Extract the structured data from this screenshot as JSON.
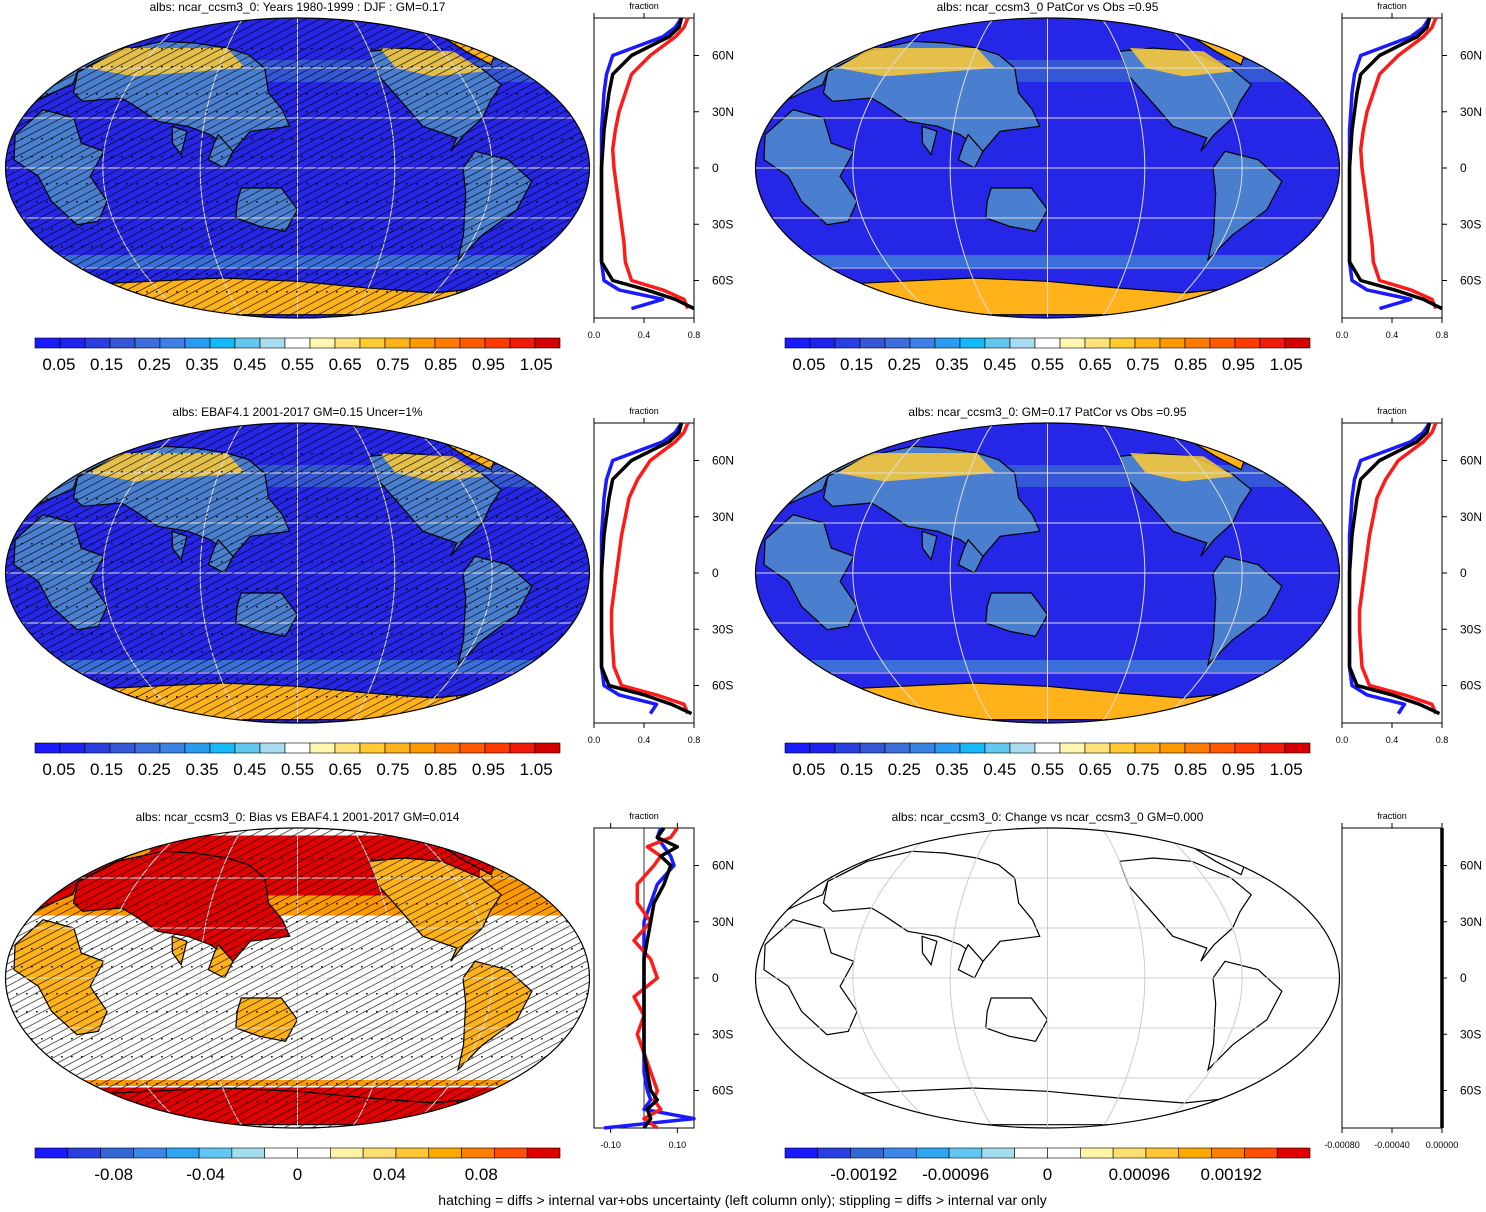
{
  "footnote": "hatching = diffs > internal var+obs uncertainty (left column only); stippling = diffs > internal var only",
  "colors": {
    "abs_palette": [
      "#1a1aff",
      "#1f22ee",
      "#2a3fe0",
      "#3457d6",
      "#3a6ed8",
      "#3b82e4",
      "#2a9cf0",
      "#16b8f6",
      "#62c8ef",
      "#a9dcef",
      "#ffffff",
      "#fff6b0",
      "#ffe27a",
      "#ffcb33",
      "#ffb21a",
      "#ff9900",
      "#ff7a00",
      "#ff5a00",
      "#ff3a00",
      "#f01a0a",
      "#d40000"
    ],
    "diff_palette": [
      "#1a1aff",
      "#2a3fe0",
      "#3466d8",
      "#3b86e6",
      "#2aa6f2",
      "#5ec7f2",
      "#a6dcf0",
      "#ffffff",
      "#ffffff",
      "#fff4a8",
      "#ffdf6e",
      "#ffc633",
      "#ffa800",
      "#ff7e00",
      "#ff4e00",
      "#e00000"
    ],
    "ocean": "#2626e6",
    "profile_model": "#000000",
    "profile_obs": "#ff1a1a",
    "profile_other": "#1a1aff"
  },
  "profile_axis": {
    "title": "fraction",
    "lat_labels": [
      "60N",
      "30N",
      "0",
      "30S",
      "60S"
    ]
  },
  "panels": [
    {
      "title": "albs: ncar_ccsm3_0: Years 1980-1999 : DJF : GM=0.17",
      "map_style": "abs",
      "hatching": true,
      "colorbar_labels": [
        "0.05",
        "0.15",
        "0.25",
        "0.35",
        "0.45",
        "0.55",
        "0.65",
        "0.75",
        "0.85",
        "0.95",
        "1.05"
      ],
      "profile_xticks": [
        "0.0",
        "0.4",
        "0.8"
      ]
    },
    {
      "title": "albs: ncar_ccsm3_0 PatCor vs Obs =0.95",
      "map_style": "abs",
      "hatching": false,
      "colorbar_labels": [
        "0.05",
        "0.15",
        "0.25",
        "0.35",
        "0.45",
        "0.55",
        "0.65",
        "0.75",
        "0.85",
        "0.95",
        "1.05"
      ],
      "profile_xticks": [
        "0.0",
        "0.4",
        "0.8"
      ]
    },
    {
      "title": "albs: EBAF4.1 2001-2017 GM=0.15 Uncer=1%",
      "map_style": "abs",
      "hatching": true,
      "colorbar_labels": [
        "0.05",
        "0.15",
        "0.25",
        "0.35",
        "0.45",
        "0.55",
        "0.65",
        "0.75",
        "0.85",
        "0.95",
        "1.05"
      ],
      "profile_xticks": [
        "0.0",
        "0.4",
        "0.8"
      ]
    },
    {
      "title": "albs: ncar_ccsm3_0: GM=0.17 PatCor vs Obs =0.95",
      "map_style": "abs",
      "hatching": false,
      "colorbar_labels": [
        "0.05",
        "0.15",
        "0.25",
        "0.35",
        "0.45",
        "0.55",
        "0.65",
        "0.75",
        "0.85",
        "0.95",
        "1.05"
      ],
      "profile_xticks": [
        "0.0",
        "0.4",
        "0.8"
      ]
    },
    {
      "title": "albs: ncar_ccsm3_0: Bias vs EBAF4.1 2001-2017 GM=0.014",
      "map_style": "bias",
      "hatching": true,
      "colorbar_labels": [
        "-0.08",
        "-0.04",
        "0",
        "0.04",
        "0.08"
      ],
      "profile_xticks": [
        "-0.10",
        "0.10"
      ]
    },
    {
      "title": "albs: ncar_ccsm3_0: Change vs ncar_ccsm3_0 GM=0.000",
      "map_style": "blank",
      "hatching": false,
      "colorbar_labels": [
        "-0.00192",
        "-0.00096",
        "0",
        "0.00096",
        "0.00192"
      ],
      "profile_xticks": [
        "-0.00080",
        "-0.00040",
        "0.00000"
      ]
    }
  ],
  "chart_data": [
    {
      "type": "line",
      "title": "albs: ncar_ccsm3_0: Years 1980-1999 : DJF : GM=0.17",
      "xlabel": "fraction",
      "ylabel": "",
      "xlim": [
        0,
        0.8
      ],
      "ylim": [
        -80,
        80
      ],
      "series": [
        {
          "color": "#000000",
          "y": [
            -75,
            -70,
            -65,
            -60,
            -50,
            -40,
            -30,
            -20,
            -10,
            0,
            10,
            20,
            30,
            40,
            50,
            60,
            65,
            70,
            75,
            80
          ],
          "x": [
            0.8,
            0.65,
            0.42,
            0.15,
            0.06,
            0.06,
            0.06,
            0.06,
            0.06,
            0.06,
            0.07,
            0.08,
            0.1,
            0.12,
            0.15,
            0.3,
            0.45,
            0.6,
            0.68,
            0.7
          ]
        },
        {
          "color": "#ff1a1a",
          "y": [
            -75,
            -70,
            -65,
            -60,
            -50,
            -40,
            -30,
            -20,
            -10,
            0,
            10,
            20,
            30,
            40,
            50,
            60,
            65,
            70,
            75,
            80
          ],
          "x": [
            0.75,
            0.72,
            0.55,
            0.3,
            0.25,
            0.24,
            0.22,
            0.2,
            0.18,
            0.16,
            0.15,
            0.17,
            0.2,
            0.25,
            0.3,
            0.45,
            0.55,
            0.65,
            0.72,
            0.75
          ]
        },
        {
          "color": "#1a1aff",
          "y": [
            -75,
            -70,
            -65,
            -60,
            -50,
            -40,
            -30,
            -20,
            -10,
            0,
            10,
            20,
            30,
            40,
            50,
            60,
            65,
            70,
            75,
            80
          ],
          "x": [
            0.3,
            0.55,
            0.2,
            0.08,
            0.06,
            0.06,
            0.06,
            0.06,
            0.06,
            0.06,
            0.06,
            0.06,
            0.07,
            0.08,
            0.1,
            0.15,
            0.35,
            0.55,
            0.65,
            0.7
          ]
        }
      ]
    },
    {
      "type": "line",
      "title": "albs: ncar_ccsm3_0 PatCor vs Obs =0.95",
      "xlabel": "fraction",
      "ylabel": "",
      "xlim": [
        0,
        0.8
      ],
      "ylim": [
        -80,
        80
      ],
      "series": [
        {
          "color": "#000000",
          "y": [
            -75,
            -70,
            -65,
            -60,
            -50,
            -40,
            -30,
            -20,
            -10,
            0,
            10,
            20,
            30,
            40,
            50,
            60,
            65,
            70,
            75,
            80
          ],
          "x": [
            0.8,
            0.65,
            0.42,
            0.15,
            0.06,
            0.06,
            0.06,
            0.06,
            0.06,
            0.06,
            0.07,
            0.08,
            0.1,
            0.12,
            0.15,
            0.3,
            0.45,
            0.6,
            0.68,
            0.7
          ]
        },
        {
          "color": "#ff1a1a",
          "y": [
            -75,
            -70,
            -65,
            -60,
            -50,
            -40,
            -30,
            -20,
            -10,
            0,
            10,
            20,
            30,
            40,
            50,
            60,
            65,
            70,
            75,
            80
          ],
          "x": [
            0.75,
            0.72,
            0.55,
            0.3,
            0.25,
            0.24,
            0.22,
            0.2,
            0.18,
            0.16,
            0.15,
            0.17,
            0.2,
            0.25,
            0.3,
            0.45,
            0.55,
            0.65,
            0.72,
            0.75
          ]
        },
        {
          "color": "#1a1aff",
          "y": [
            -75,
            -70,
            -65,
            -60,
            -50,
            -40,
            -30,
            -20,
            -10,
            0,
            10,
            20,
            30,
            40,
            50,
            60,
            65,
            70,
            75,
            80
          ],
          "x": [
            0.3,
            0.55,
            0.2,
            0.08,
            0.06,
            0.06,
            0.06,
            0.06,
            0.06,
            0.06,
            0.06,
            0.06,
            0.07,
            0.08,
            0.1,
            0.15,
            0.35,
            0.55,
            0.65,
            0.7
          ]
        }
      ]
    },
    {
      "type": "line",
      "title": "albs: EBAF4.1 2001-2017 GM=0.15 Uncer=1%",
      "xlabel": "fraction",
      "ylabel": "",
      "xlim": [
        0,
        0.8
      ],
      "ylim": [
        -80,
        80
      ],
      "series": [
        {
          "color": "#000000",
          "y": [
            -75,
            -70,
            -65,
            -60,
            -50,
            -40,
            -30,
            -20,
            -10,
            0,
            10,
            20,
            30,
            40,
            50,
            60,
            65,
            70,
            75,
            80
          ],
          "x": [
            0.78,
            0.62,
            0.4,
            0.12,
            0.06,
            0.06,
            0.06,
            0.06,
            0.06,
            0.06,
            0.07,
            0.08,
            0.1,
            0.12,
            0.15,
            0.3,
            0.45,
            0.6,
            0.68,
            0.7
          ]
        },
        {
          "color": "#ff1a1a",
          "y": [
            -75,
            -70,
            -65,
            -60,
            -50,
            -40,
            -30,
            -20,
            -10,
            0,
            10,
            20,
            30,
            40,
            50,
            60,
            65,
            70,
            75,
            80
          ],
          "x": [
            0.75,
            0.72,
            0.5,
            0.22,
            0.16,
            0.15,
            0.14,
            0.14,
            0.16,
            0.18,
            0.2,
            0.22,
            0.25,
            0.28,
            0.35,
            0.45,
            0.55,
            0.65,
            0.72,
            0.75
          ]
        },
        {
          "color": "#1a1aff",
          "y": [
            -75,
            -70,
            -65,
            -60,
            -50,
            -40,
            -30,
            -20,
            -10,
            0,
            10,
            20,
            30,
            40,
            50,
            60,
            65,
            70,
            75,
            80
          ],
          "x": [
            0.45,
            0.5,
            0.2,
            0.08,
            0.06,
            0.06,
            0.06,
            0.06,
            0.06,
            0.06,
            0.06,
            0.06,
            0.07,
            0.08,
            0.1,
            0.15,
            0.35,
            0.55,
            0.65,
            0.7
          ]
        }
      ]
    },
    {
      "type": "line",
      "title": "albs: ncar_ccsm3_0: GM=0.17 PatCor vs Obs =0.95",
      "xlabel": "fraction",
      "ylabel": "",
      "xlim": [
        0,
        0.8
      ],
      "ylim": [
        -80,
        80
      ],
      "series": [
        {
          "color": "#000000",
          "y": [
            -75,
            -70,
            -65,
            -60,
            -50,
            -40,
            -30,
            -20,
            -10,
            0,
            10,
            20,
            30,
            40,
            50,
            60,
            65,
            70,
            75,
            80
          ],
          "x": [
            0.78,
            0.62,
            0.4,
            0.12,
            0.06,
            0.06,
            0.06,
            0.06,
            0.06,
            0.06,
            0.07,
            0.08,
            0.1,
            0.12,
            0.15,
            0.3,
            0.45,
            0.6,
            0.68,
            0.7
          ]
        },
        {
          "color": "#ff1a1a",
          "y": [
            -75,
            -70,
            -65,
            -60,
            -50,
            -40,
            -30,
            -20,
            -10,
            0,
            10,
            20,
            30,
            40,
            50,
            60,
            65,
            70,
            75,
            80
          ],
          "x": [
            0.75,
            0.72,
            0.5,
            0.22,
            0.16,
            0.15,
            0.14,
            0.14,
            0.16,
            0.18,
            0.2,
            0.22,
            0.25,
            0.28,
            0.35,
            0.45,
            0.55,
            0.65,
            0.72,
            0.75
          ]
        },
        {
          "color": "#1a1aff",
          "y": [
            -75,
            -70,
            -65,
            -60,
            -50,
            -40,
            -30,
            -20,
            -10,
            0,
            10,
            20,
            30,
            40,
            50,
            60,
            65,
            70,
            75,
            80
          ],
          "x": [
            0.45,
            0.5,
            0.2,
            0.08,
            0.06,
            0.06,
            0.06,
            0.06,
            0.06,
            0.06,
            0.06,
            0.06,
            0.07,
            0.08,
            0.1,
            0.15,
            0.35,
            0.55,
            0.65,
            0.7
          ]
        }
      ]
    },
    {
      "type": "line",
      "title": "albs: ncar_ccsm3_0: Bias vs EBAF4.1 2001-2017 GM=0.014",
      "xlabel": "fraction",
      "ylabel": "",
      "xlim": [
        -0.15,
        0.15
      ],
      "ylim": [
        -80,
        80
      ],
      "series": [
        {
          "color": "#000000",
          "y": [
            -80,
            -75,
            -70,
            -65,
            -60,
            -50,
            -40,
            -30,
            -20,
            -10,
            0,
            10,
            20,
            30,
            40,
            50,
            60,
            65,
            70,
            75,
            80
          ],
          "x": [
            0.0,
            0.02,
            0.01,
            0.04,
            0.02,
            0.01,
            0.0,
            0.0,
            0.0,
            0.0,
            0.0,
            0.0,
            0.01,
            0.02,
            0.03,
            0.06,
            0.08,
            0.05,
            0.1,
            0.04,
            0.06
          ]
        },
        {
          "color": "#ff1a1a",
          "y": [
            -80,
            -75,
            -70,
            -65,
            -60,
            -50,
            -40,
            -30,
            -20,
            -10,
            0,
            10,
            20,
            30,
            40,
            50,
            60,
            65,
            70,
            75,
            80
          ],
          "x": [
            0.04,
            0.0,
            0.05,
            0.03,
            0.04,
            0.02,
            0.0,
            -0.02,
            0.0,
            -0.03,
            0.04,
            0.02,
            -0.03,
            0.02,
            -0.02,
            -0.02,
            0.03,
            0.05,
            0.01,
            0.08,
            0.1
          ]
        },
        {
          "color": "#1a1aff",
          "y": [
            -80,
            -75,
            -70,
            -65,
            -60,
            -50,
            -40,
            -30,
            -20,
            -10,
            0,
            10,
            20,
            30,
            40,
            50,
            60,
            65,
            70,
            75,
            80
          ],
          "x": [
            -0.12,
            0.15,
            0.0,
            0.02,
            0.01,
            0.0,
            0.0,
            0.0,
            0.0,
            0.0,
            0.0,
            0.0,
            0.0,
            0.0,
            0.02,
            0.04,
            0.09,
            0.08,
            0.06,
            0.04,
            0.05
          ]
        }
      ]
    },
    {
      "type": "line",
      "title": "albs: ncar_ccsm3_0: Change vs ncar_ccsm3_0 GM=0.000",
      "xlabel": "fraction",
      "ylabel": "",
      "xlim": [
        -0.0008,
        0.0
      ],
      "ylim": [
        -80,
        80
      ],
      "series": [
        {
          "color": "#000000",
          "y": [
            -80,
            0,
            80
          ],
          "x": [
            0.0,
            0.0,
            0.0
          ]
        }
      ]
    }
  ]
}
